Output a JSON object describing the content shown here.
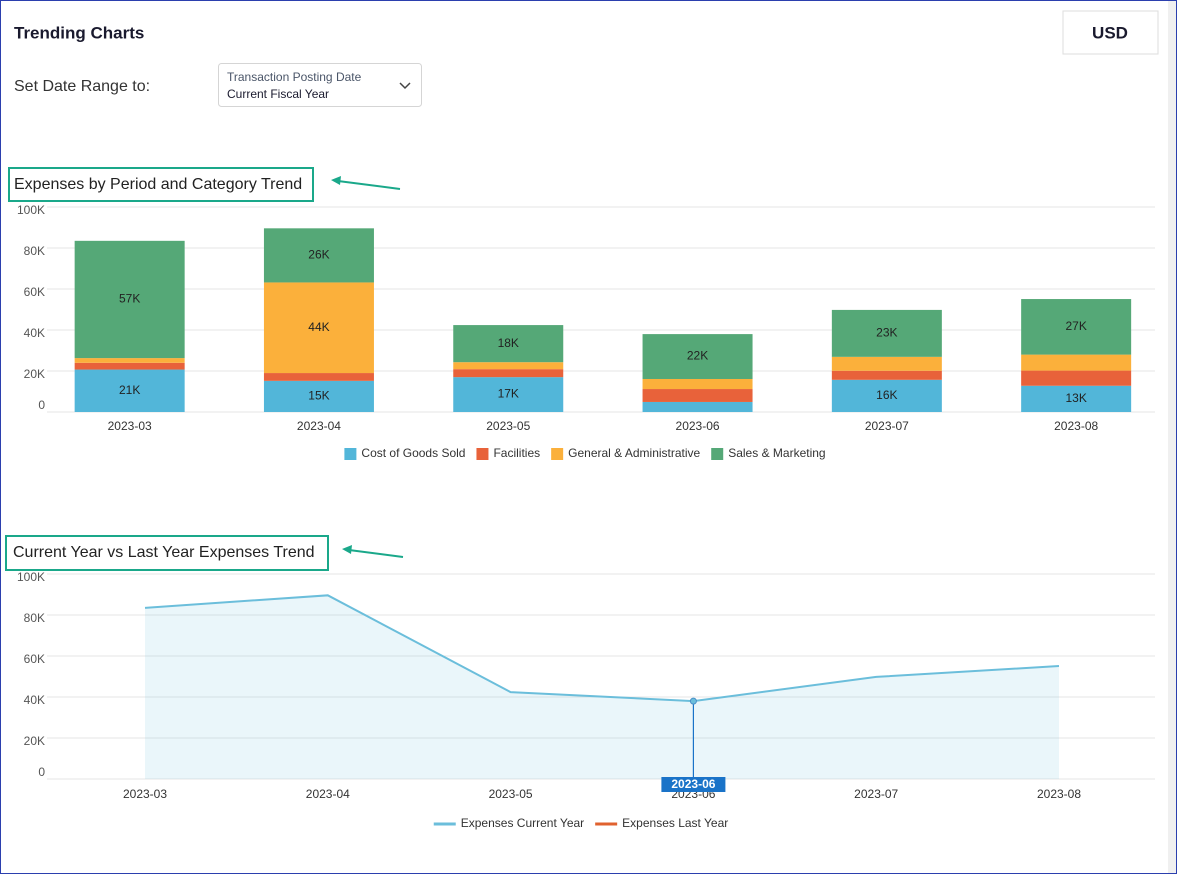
{
  "header": {
    "title": "Trending Charts",
    "currency": "USD"
  },
  "filter": {
    "label": "Set Date Range to:",
    "field": "Transaction Posting Date",
    "value": "Current Fiscal Year"
  },
  "chart_data": [
    {
      "type": "bar",
      "stacked": true,
      "title": "Expenses by Period and Category Trend",
      "categories": [
        "2023-03",
        "2023-04",
        "2023-05",
        "2023-06",
        "2023-07",
        "2023-08"
      ],
      "series": [
        {
          "name": "Cost of Goods Sold",
          "color": "#52b6d9",
          "values": [
            20700,
            15200,
            17000,
            4900,
            15700,
            12800
          ],
          "value_labels": [
            "21K",
            "15K",
            "17K",
            null,
            "16K",
            "13K"
          ]
        },
        {
          "name": "Facilities",
          "color": "#e8623a",
          "values": [
            3300,
            3800,
            3900,
            6300,
            4400,
            7400
          ]
        },
        {
          "name": "General & Administrative",
          "color": "#fbb03b",
          "values": [
            2300,
            44200,
            3400,
            4900,
            6800,
            7800
          ],
          "value_labels": [
            null,
            "44K",
            null,
            null,
            null,
            null
          ]
        },
        {
          "name": "Sales & Marketing",
          "color": "#55a877",
          "values": [
            57200,
            26400,
            18100,
            21900,
            22900,
            27100
          ],
          "value_labels": [
            "57K",
            "26K",
            "18K",
            "22K",
            "23K",
            "27K"
          ]
        }
      ],
      "ylim": [
        0,
        100000
      ],
      "yticks": [
        0,
        {
          "value": 20000,
          "label": "20K"
        },
        {
          "value": 40000,
          "label": "40K"
        },
        {
          "value": 60000,
          "label": "60K"
        },
        {
          "value": 80000,
          "label": "80K"
        },
        {
          "value": 100000,
          "label": "100K"
        }
      ],
      "grid": true,
      "legend": "bottom"
    },
    {
      "type": "line",
      "area": true,
      "title": "Current Year vs Last Year Expenses Trend",
      "categories": [
        "2023-03",
        "2023-04",
        "2023-05",
        "2023-06",
        "2023-07",
        "2023-08"
      ],
      "series": [
        {
          "name": "Expenses Current Year",
          "color": "#6bbedb",
          "values": [
            83500,
            89600,
            42400,
            38000,
            49800,
            55100
          ]
        },
        {
          "name": "Expenses Last Year",
          "color": "#e0622f",
          "values": [
            null,
            null,
            null,
            null,
            null,
            null
          ]
        }
      ],
      "ylim": [
        0,
        100000
      ],
      "yticks": [
        0,
        {
          "value": 20000,
          "label": "20K"
        },
        {
          "value": 40000,
          "label": "40K"
        },
        {
          "value": 60000,
          "label": "60K"
        },
        {
          "value": 80000,
          "label": "80K"
        },
        {
          "value": 100000,
          "label": "100K"
        }
      ],
      "grid": true,
      "legend": "bottom",
      "crosshair": "2023-06"
    }
  ]
}
